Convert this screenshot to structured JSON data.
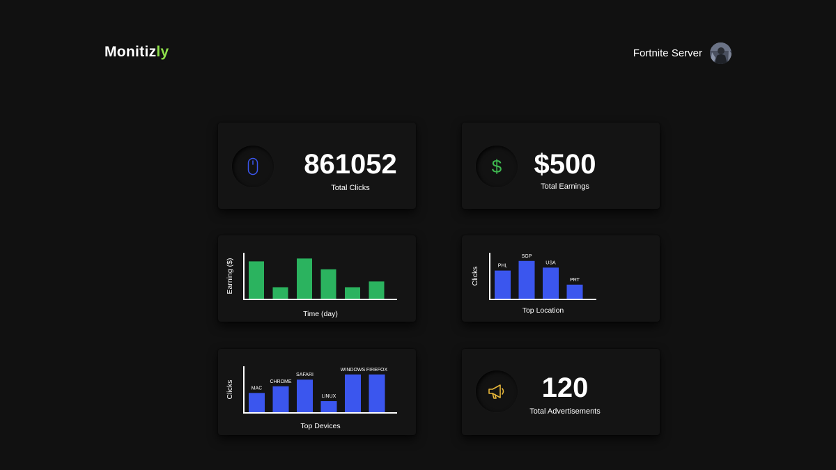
{
  "header": {
    "brand_prefix": "Monitiz",
    "brand_accent": "ly",
    "user_name": "Fortnite Server"
  },
  "stats": {
    "clicks": {
      "value": "861052",
      "label": "Total Clicks",
      "icon": "mouse-icon"
    },
    "earnings": {
      "value": "$500",
      "label": "Total Earnings",
      "icon": "dollar-icon",
      "glyph": "$"
    },
    "ads": {
      "value": "120",
      "label": "Total Advertisements",
      "icon": "megaphone-icon"
    }
  },
  "colors": {
    "accent": "#8ee04a",
    "green_bar": "#2bb35f",
    "blue_bar": "#3b56ee",
    "mouse_icon": "#3b56ee",
    "dollar_icon": "#3fb950",
    "megaphone_icon": "#e8b73a"
  },
  "chart_data": [
    {
      "id": "earnings",
      "type": "bar",
      "xlabel": "Time (day)",
      "ylabel": "Earning ($)",
      "categories": [
        "",
        "",
        "",
        "",
        "",
        ""
      ],
      "values": [
        52,
        16,
        56,
        41,
        16,
        24
      ],
      "ylim": [
        0,
        65
      ],
      "color": "#2bb35f",
      "show_category_labels": false
    },
    {
      "id": "location",
      "type": "bar",
      "xlabel": "Top Location",
      "ylabel": "Clicks",
      "categories": [
        "PHL",
        "SGP",
        "USA",
        "PRT"
      ],
      "values": [
        38,
        51,
        42,
        19
      ],
      "ylim": [
        0,
        63
      ],
      "color": "#3b56ee",
      "show_category_labels": true
    },
    {
      "id": "devices",
      "type": "bar",
      "xlabel": "Top Devices",
      "ylabel": "Clicks",
      "categories": [
        "MAC",
        "CHROME",
        "SAFARI",
        "LINUX",
        "WINDOWS",
        "FIREFOX"
      ],
      "values": [
        26,
        35,
        44,
        15,
        51,
        51
      ],
      "ylim": [
        0,
        63
      ],
      "color": "#3b56ee",
      "show_category_labels": true
    }
  ]
}
